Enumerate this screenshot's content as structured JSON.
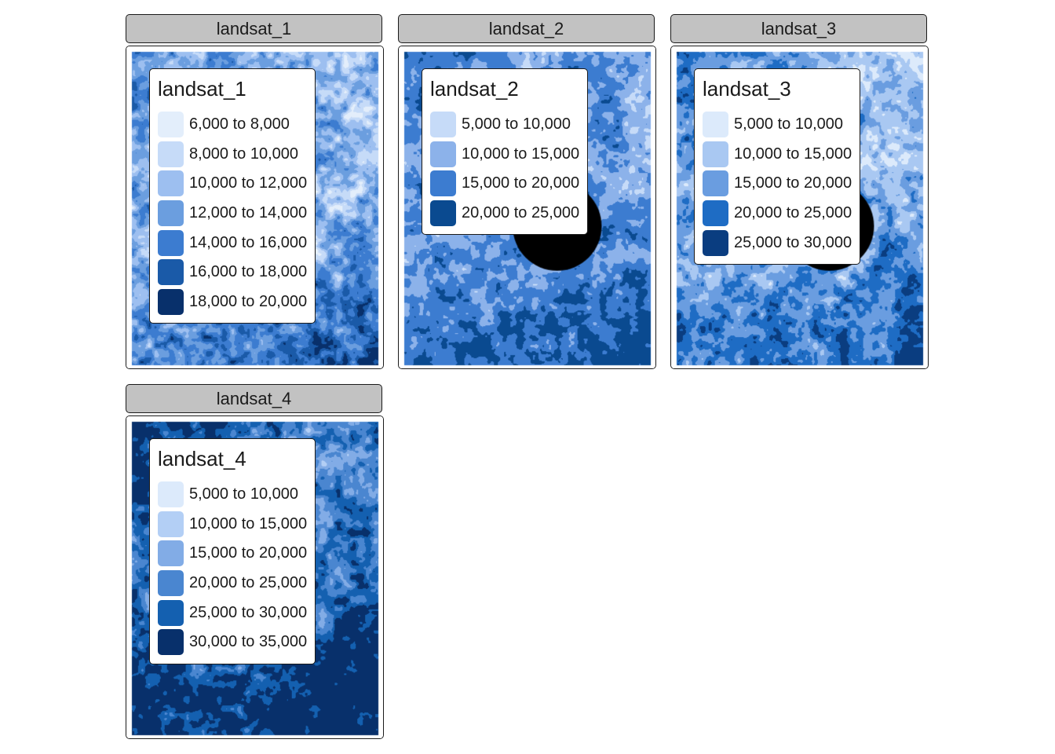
{
  "colors": {
    "background": "#ffffff",
    "strip": "#c2c2c2",
    "border": "#1a1a1a"
  },
  "panels": [
    {
      "strip_title": "landsat_1",
      "legend_title": "landsat_1",
      "base_color": "#c6dbf8",
      "legend": [
        {
          "label": "6,000 to 8,000",
          "color": "#e3eefb"
        },
        {
          "label": "8,000 to 10,000",
          "color": "#c6dbf8"
        },
        {
          "label": "10,000 to 12,000",
          "color": "#9dbff0"
        },
        {
          "label": "12,000 to 14,000",
          "color": "#6b9edf"
        },
        {
          "label": "14,000 to 16,000",
          "color": "#3c7cd0"
        },
        {
          "label": "16,000 to 18,000",
          "color": "#1a5aa8"
        },
        {
          "label": "18,000 to 20,000",
          "color": "#08306b"
        }
      ]
    },
    {
      "strip_title": "landsat_2",
      "legend_title": "landsat_2",
      "base_color": "#c6dbf8",
      "legend": [
        {
          "label": "5,000 to 10,000",
          "color": "#c6dbf8"
        },
        {
          "label": "10,000 to 15,000",
          "color": "#8cb2ea"
        },
        {
          "label": "15,000 to 20,000",
          "color": "#3c7cd0"
        },
        {
          "label": "20,000 to 25,000",
          "color": "#0a4a90"
        }
      ]
    },
    {
      "strip_title": "landsat_3",
      "legend_title": "landsat_3",
      "base_color": "#dceafb",
      "legend": [
        {
          "label": "5,000 to 10,000",
          "color": "#dceafb"
        },
        {
          "label": "10,000 to 15,000",
          "color": "#a9c8f2"
        },
        {
          "label": "15,000 to 20,000",
          "color": "#6a9de0"
        },
        {
          "label": "20,000 to 25,000",
          "color": "#1e6cc4"
        },
        {
          "label": "25,000 to 30,000",
          "color": "#0a3d80"
        }
      ]
    },
    {
      "strip_title": "landsat_4",
      "legend_title": "landsat_4",
      "base_color": "#8ab0e8",
      "legend": [
        {
          "label": "5,000 to 10,000",
          "color": "#dceafb"
        },
        {
          "label": "10,000 to 15,000",
          "color": "#b3cff5"
        },
        {
          "label": "15,000 to 20,000",
          "color": "#82ace6"
        },
        {
          "label": "20,000 to 25,000",
          "color": "#4a86d0"
        },
        {
          "label": "25,000 to 30,000",
          "color": "#1460b0"
        },
        {
          "label": "30,000 to 35,000",
          "color": "#08306b"
        }
      ]
    }
  ]
}
